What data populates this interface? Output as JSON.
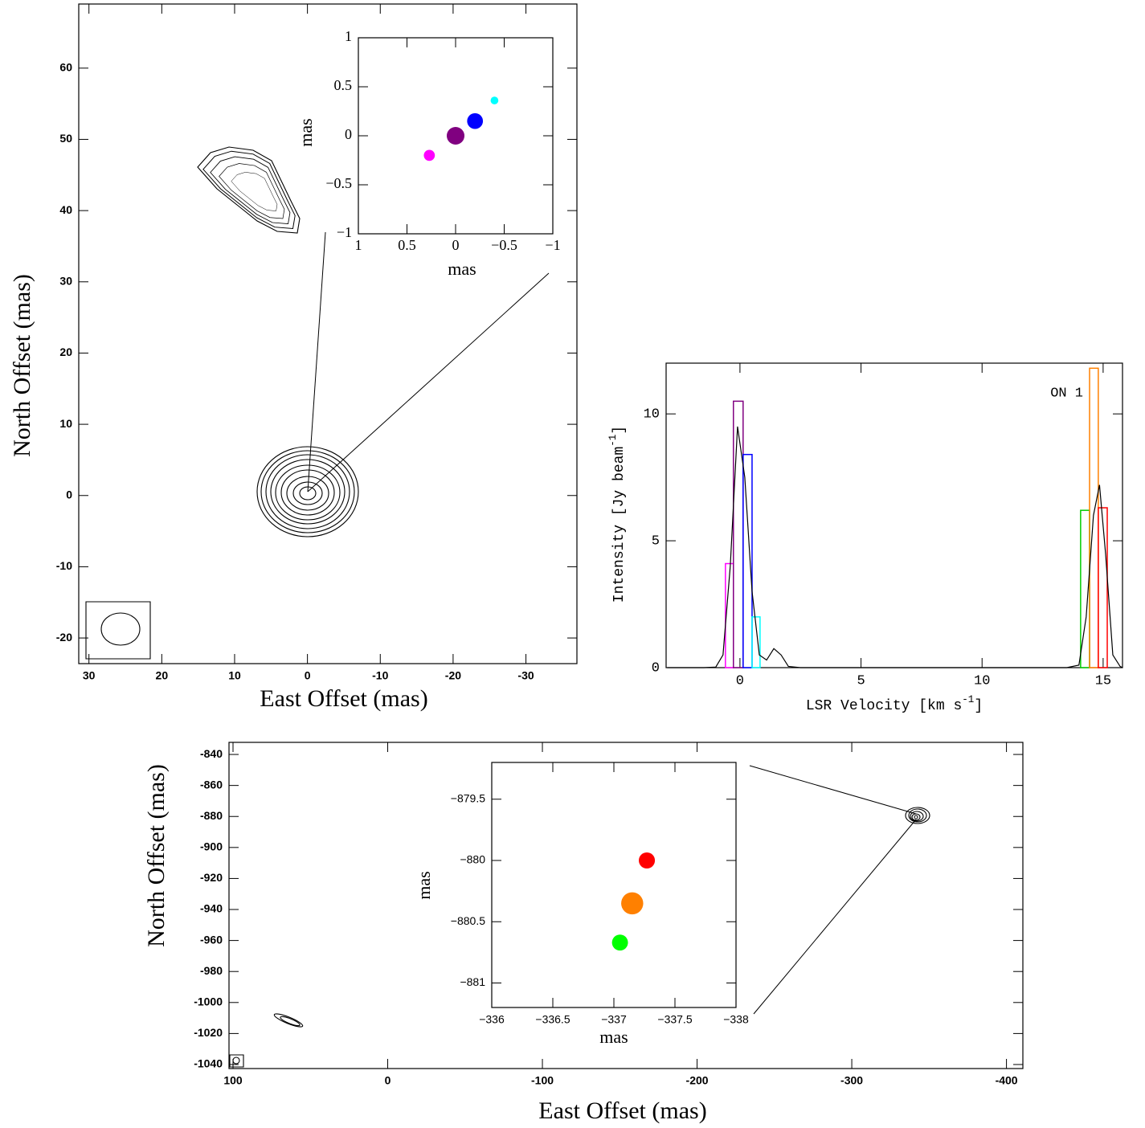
{
  "chart_data": [
    {
      "type": "map",
      "x_label": "East Offset (mas)",
      "y_label": "North Offset (mas)",
      "xlim": [
        31.4,
        -37
      ],
      "ylim": [
        -23.6,
        69
      ],
      "xticks": [
        30,
        20,
        10,
        0,
        -10,
        -20,
        -30
      ],
      "yticks": [
        -20,
        -10,
        0,
        10,
        20,
        30,
        40,
        50,
        60
      ]
    },
    {
      "type": "scatter",
      "x_label": "mas",
      "y_label": "mas",
      "xlim": [
        1,
        -1
      ],
      "ylim": [
        -1,
        1
      ],
      "xticks": [
        1,
        0.5,
        0,
        {
          "value": -0.5,
          "label": "−0.5"
        },
        {
          "value": -1,
          "label": "−1"
        }
      ],
      "yticks": [
        {
          "value": -1,
          "label": "−1"
        },
        {
          "value": -0.5,
          "label": "−0.5"
        },
        0,
        0.5,
        1
      ],
      "points": [
        {
          "x": 0.27,
          "y": -0.2,
          "size": 4.1,
          "color": "#ff00ff"
        },
        {
          "x": 0,
          "y": 0,
          "size": 10.5,
          "color": "#800080"
        },
        {
          "x": -0.2,
          "y": 0.15,
          "size": 8.4,
          "color": "#0000ff"
        },
        {
          "x": -0.4,
          "y": 0.36,
          "size": 2.0,
          "color": "#00ffff"
        }
      ]
    },
    {
      "type": "spectrum",
      "annotation": "ON 1",
      "x_label": [
        "LSR Velocity [km s",
        "-1",
        "]"
      ],
      "y_label": [
        "Intensity [Jy beam",
        "-1",
        "]"
      ],
      "xlim": [
        -3.05,
        15.8
      ],
      "ylim": [
        0,
        12
      ],
      "xticks": [
        0,
        5,
        10,
        15
      ],
      "yticks": [
        0,
        5,
        10
      ],
      "bars": [
        {
          "x": [
            -0.6,
            -0.27
          ],
          "value": 4.1,
          "color": "#ff00ff"
        },
        {
          "x": [
            -0.27,
            0.13
          ],
          "value": 10.5,
          "color": "#800080"
        },
        {
          "x": [
            0.13,
            0.5
          ],
          "value": 8.4,
          "color": "#0000ff"
        },
        {
          "x": [
            0.5,
            0.83
          ],
          "value": 2.0,
          "color": "#00ffff"
        },
        {
          "x": [
            14.07,
            14.44
          ],
          "value": 6.2,
          "color": "#00cc00"
        },
        {
          "x": [
            14.44,
            14.8
          ],
          "value": 11.8,
          "color": "#ff8000"
        },
        {
          "x": [
            14.8,
            15.17
          ],
          "value": 6.3,
          "color": "#ff0000"
        }
      ],
      "line": {
        "color": "#000000",
        "x": [
          -3,
          -1.5,
          -1,
          -0.7,
          -0.4,
          -0.1,
          0.2,
          0.5,
          0.8,
          1.1,
          1.4,
          1.7,
          2.0,
          2.5,
          13.5,
          14,
          14.3,
          14.6,
          14.85,
          15.1,
          15.4,
          15.7,
          15.8
        ],
        "values": [
          0,
          0,
          0.02,
          0.5,
          4,
          9.5,
          7.5,
          3,
          0.5,
          0.3,
          0.75,
          0.5,
          0.05,
          0,
          0,
          0.1,
          2,
          6,
          7.2,
          4.5,
          0.5,
          0.05,
          0
        ]
      }
    },
    {
      "type": "map",
      "x_label": "East Offset (mas)",
      "y_label": "North Offset (mas)",
      "xlim": [
        102.6,
        -410.6
      ],
      "ylim": [
        -1042.6,
        -832.2
      ],
      "xticks": [
        100,
        0,
        -100,
        -200,
        -300,
        -400
      ],
      "yticks": [
        -1040,
        -1020,
        -1000,
        -980,
        -960,
        -940,
        -920,
        -900,
        -880,
        -860,
        -840
      ]
    },
    {
      "type": "scatter",
      "x_label": "mas",
      "y_label": "mas",
      "xlim": [
        -336,
        -338
      ],
      "ylim": [
        -881.2,
        -879.2
      ],
      "xticks": [
        {
          "value": -336,
          "label": "−336"
        },
        {
          "value": -336.5,
          "label": "−336.5"
        },
        {
          "value": -337,
          "label": "−337"
        },
        {
          "value": -337.5,
          "label": "−337.5"
        },
        {
          "value": -338,
          "label": "−338"
        }
      ],
      "yticks": [
        {
          "value": -881,
          "label": "−881"
        },
        {
          "value": -880.5,
          "label": "−880.5"
        },
        {
          "value": -880,
          "label": "−880"
        },
        {
          "value": -879.5,
          "label": "−879.5"
        }
      ],
      "points": [
        {
          "x": -337.27,
          "y": -880.0,
          "size": 6.3,
          "color": "#ff0000"
        },
        {
          "x": -337.15,
          "y": -880.35,
          "size": 11.8,
          "color": "#ff8000"
        },
        {
          "x": -337.05,
          "y": -880.67,
          "size": 6.2,
          "color": "#00ff00"
        }
      ]
    }
  ]
}
